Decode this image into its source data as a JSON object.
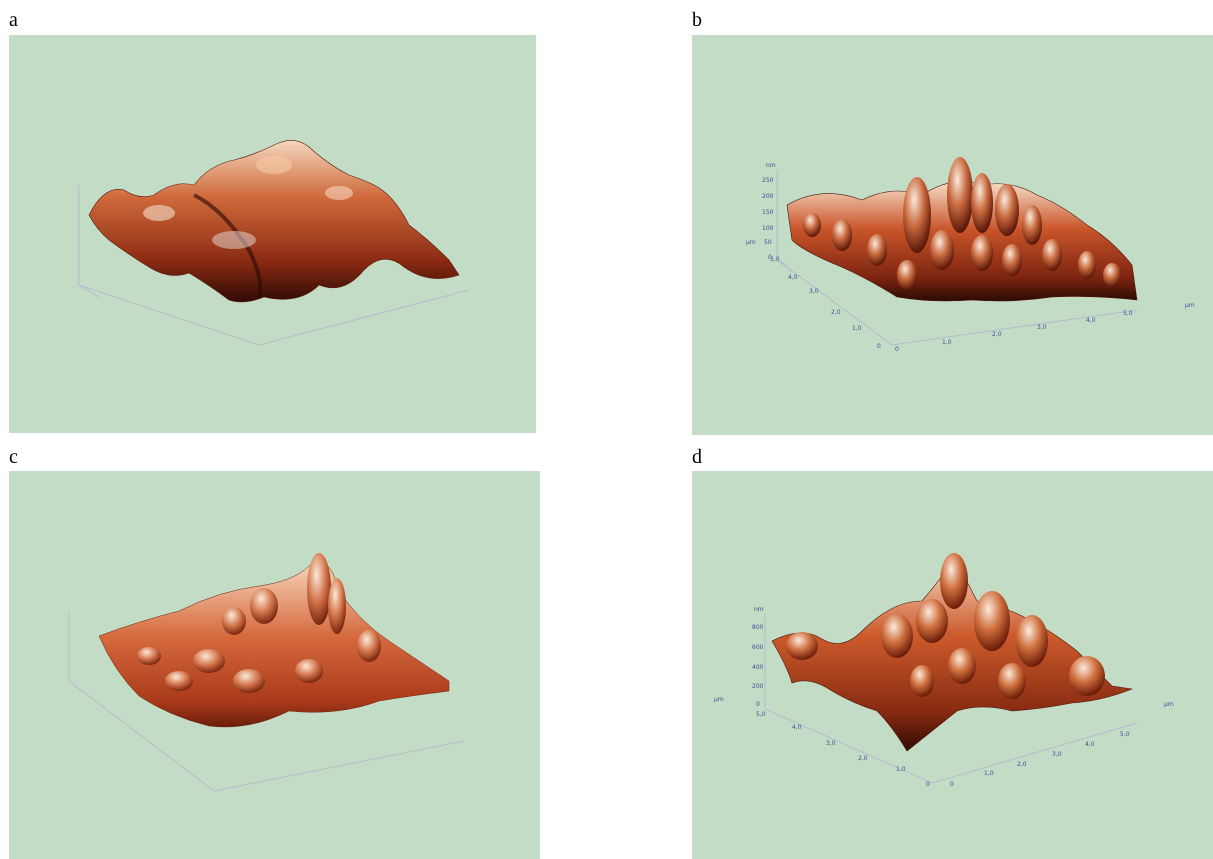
{
  "panels": {
    "a": {
      "label": "a"
    },
    "b": {
      "label": "b",
      "z_unit": "nm",
      "z_ticks": [
        "250",
        "200",
        "150",
        "100",
        "50",
        "0"
      ],
      "y_unit": "µm",
      "y_ticks": [
        "5,0",
        "4,0",
        "3,0",
        "2,0",
        "1,0",
        "0"
      ],
      "x_unit": "µm",
      "x_ticks": [
        "0",
        "1,0",
        "2,0",
        "3,0",
        "4,0",
        "5,0"
      ]
    },
    "c": {
      "label": "c"
    },
    "d": {
      "label": "d",
      "z_unit": "nm",
      "z_ticks": [
        "800",
        "600",
        "400",
        "200",
        "0"
      ],
      "y_unit": "µm",
      "y_ticks": [
        "5,0",
        "4,0",
        "3,0",
        "2,0",
        "1,0",
        "0"
      ],
      "x_unit": "µm",
      "x_ticks": [
        "0",
        "1,0",
        "2,0",
        "3,0",
        "4,0",
        "5,0"
      ]
    }
  },
  "colors": {
    "background": "#c3dcc6",
    "surface_dark": "#3a0e06",
    "surface_mid": "#b8441f",
    "surface_light": "#f2c9a8",
    "tick_text": "#3a4f9a"
  }
}
